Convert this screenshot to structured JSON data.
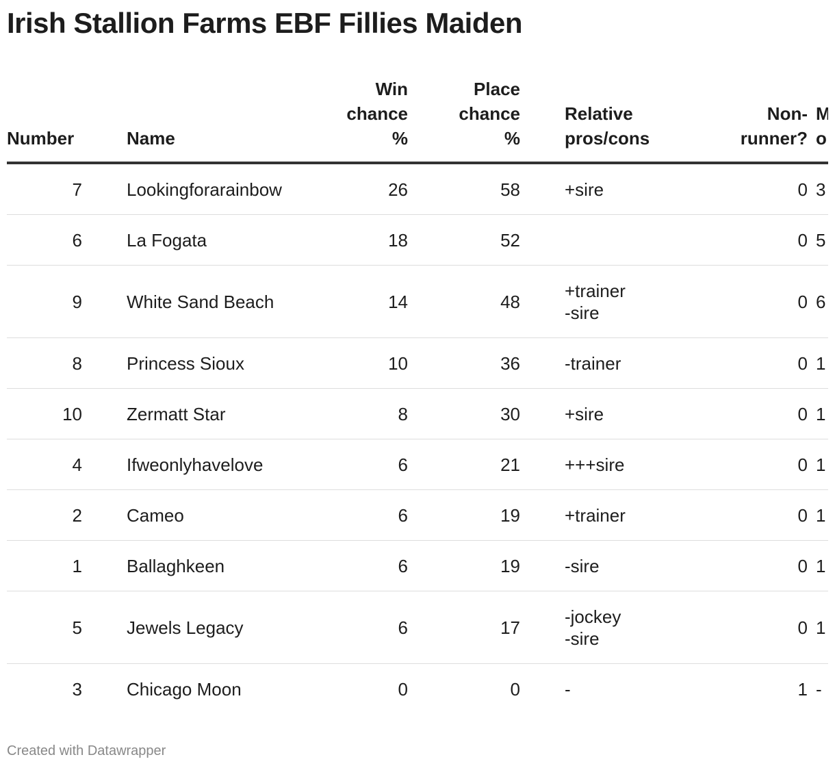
{
  "title": "Irish Stallion Farms EBF Fillies Maiden",
  "columns": {
    "number": "Number",
    "name": "Name",
    "win": "Win chance %",
    "place": "Place chance %",
    "pros": "Relative pros/cons",
    "nonrunner": "Non-runner?",
    "extra": "M o"
  },
  "rows": [
    {
      "number": "7",
      "name": "Lookingforarainbow",
      "win": "26",
      "place": "58",
      "pros": "+sire",
      "nonrunner": "0",
      "extra": "3"
    },
    {
      "number": "6",
      "name": "La Fogata",
      "win": "18",
      "place": "52",
      "pros": "",
      "nonrunner": "0",
      "extra": "5"
    },
    {
      "number": "9",
      "name": "White Sand Beach",
      "win": "14",
      "place": "48",
      "pros": "+trainer\n-sire",
      "nonrunner": "0",
      "extra": "6"
    },
    {
      "number": "8",
      "name": "Princess Sioux",
      "win": "10",
      "place": "36",
      "pros": "-trainer",
      "nonrunner": "0",
      "extra": "1"
    },
    {
      "number": "10",
      "name": "Zermatt Star",
      "win": "8",
      "place": "30",
      "pros": "+sire",
      "nonrunner": "0",
      "extra": "1"
    },
    {
      "number": "4",
      "name": "Ifweonlyhavelove",
      "win": "6",
      "place": "21",
      "pros": "+++sire",
      "nonrunner": "0",
      "extra": "1"
    },
    {
      "number": "2",
      "name": "Cameo",
      "win": "6",
      "place": "19",
      "pros": "+trainer",
      "nonrunner": "0",
      "extra": "1"
    },
    {
      "number": "1",
      "name": "Ballaghkeen",
      "win": "6",
      "place": "19",
      "pros": "-sire",
      "nonrunner": "0",
      "extra": "1"
    },
    {
      "number": "5",
      "name": "Jewels Legacy",
      "win": "6",
      "place": "17",
      "pros": "-jockey\n-sire",
      "nonrunner": "0",
      "extra": "1"
    },
    {
      "number": "3",
      "name": "Chicago Moon",
      "win": "0",
      "place": "0",
      "pros": "-",
      "nonrunner": "1",
      "extra": "-"
    }
  ],
  "footer": "Created with Datawrapper"
}
